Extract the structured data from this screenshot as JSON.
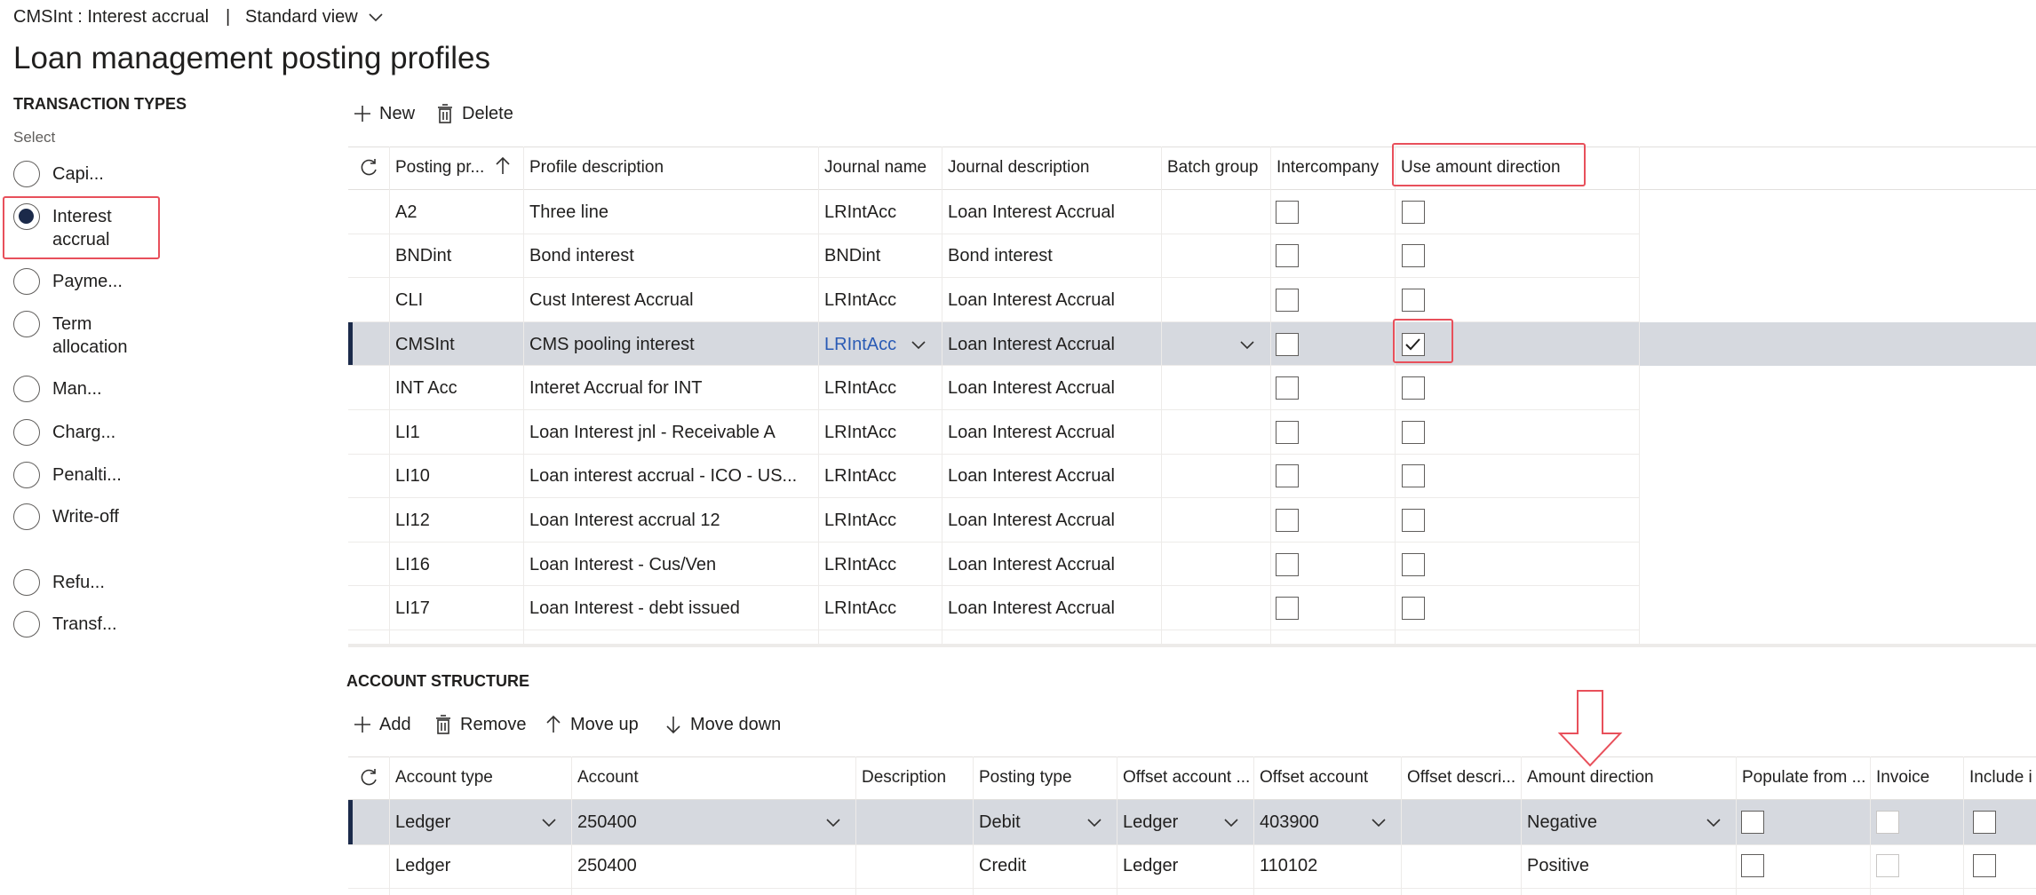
{
  "header": {
    "breadcrumb": "CMSInt : Interest accrual",
    "separator": "|",
    "view": "Standard view",
    "title": "Loan management posting profiles"
  },
  "sidebar": {
    "heading": "TRANSACTION TYPES",
    "select_label": "Select",
    "selected_option": 1,
    "options": [
      "Capi...",
      "Interest accrual",
      "Payme...",
      "Term allocation",
      "Man...",
      "Charg...",
      "Penalti...",
      "Write-off",
      "Refu...",
      "Transf..."
    ]
  },
  "profiles": {
    "toolbar": [
      "New",
      "Delete"
    ],
    "selected_row": 3,
    "columns": [
      "Posting pr...",
      "Profile description",
      "Journal name",
      "Journal description",
      "Batch group",
      "Intercompany",
      "Use amount direction"
    ],
    "rows": [
      {
        "cells": [
          "A2",
          "Three line",
          "LRIntAcc",
          "Loan Interest Accrual"
        ],
        "intercompany": false,
        "use_amount_direction": false
      },
      {
        "cells": [
          "BNDint",
          "Bond interest",
          "BNDint",
          "Bond interest"
        ],
        "intercompany": false,
        "use_amount_direction": false
      },
      {
        "cells": [
          "CLI",
          "Cust Interest Accrual",
          "LRIntAcc",
          "Loan Interest Accrual"
        ],
        "intercompany": false,
        "use_amount_direction": false
      },
      {
        "cells": [
          "CMSInt",
          "CMS pooling interest",
          "LRIntAcc",
          "Loan Interest Accrual"
        ],
        "intercompany": false,
        "use_amount_direction": true
      },
      {
        "cells": [
          "INT Acc",
          "Interet Accrual for INT",
          "LRIntAcc",
          "Loan Interest Accrual"
        ],
        "intercompany": false,
        "use_amount_direction": false
      },
      {
        "cells": [
          "LI1",
          "Loan Interest  jnl - Receivable A",
          "LRIntAcc",
          "Loan Interest Accrual"
        ],
        "intercompany": false,
        "use_amount_direction": false
      },
      {
        "cells": [
          "LI10",
          "Loan interest accrual - ICO - US...",
          "LRIntAcc",
          "Loan Interest Accrual"
        ],
        "intercompany": false,
        "use_amount_direction": false
      },
      {
        "cells": [
          "LI12",
          "Loan Interest accrual 12",
          "LRIntAcc",
          "Loan Interest Accrual"
        ],
        "intercompany": false,
        "use_amount_direction": false
      },
      {
        "cells": [
          "LI16",
          "Loan Interest - Cus/Ven",
          "LRIntAcc",
          "Loan Interest Accrual"
        ],
        "intercompany": false,
        "use_amount_direction": false
      },
      {
        "cells": [
          "LI17",
          "Loan Interest - debt issued",
          "LRIntAcc",
          "Loan Interest Accrual"
        ],
        "intercompany": false,
        "use_amount_direction": false
      }
    ]
  },
  "account_structure": {
    "heading": "ACCOUNT STRUCTURE",
    "toolbar": [
      "Add",
      "Remove",
      "Move up",
      "Move down"
    ],
    "selected_row": 0,
    "columns": [
      "Account type",
      "Account",
      "Description",
      "Posting type",
      "Offset account ...",
      "Offset account",
      "Offset descri...",
      "Amount direction",
      "Populate from ...",
      "Invoice",
      "Include i"
    ],
    "rows": [
      {
        "account_type": "Ledger",
        "account": "250400",
        "posting_type": "Debit",
        "offset_account_type": "Ledger",
        "offset_account": "403900",
        "amount_direction": "Negative",
        "populate_from": false,
        "invoice": false,
        "include": false
      },
      {
        "account_type": "Ledger",
        "account": "250400",
        "posting_type": "Credit",
        "offset_account_type": "Ledger",
        "offset_account": "110102",
        "amount_direction": "Positive",
        "populate_from": false,
        "invoice": false,
        "include": false
      }
    ]
  }
}
